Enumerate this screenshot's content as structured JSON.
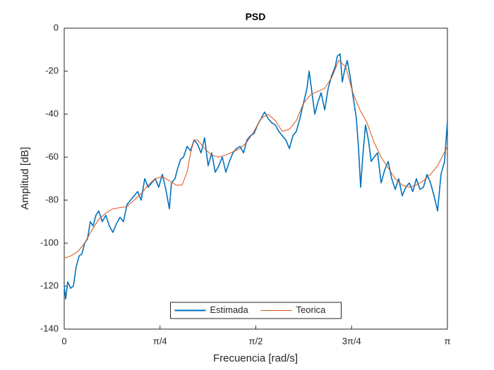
{
  "chart_data": {
    "type": "line",
    "title": "PSD",
    "x_label": "Frecuencia [rad/s]",
    "y_label": "Amplitud [dB]",
    "xlim": [
      0,
      3.1416
    ],
    "ylim": [
      -140,
      0
    ],
    "xticks": [
      {
        "value": 0,
        "label": "0"
      },
      {
        "value": 0.7854,
        "label": "π/4"
      },
      {
        "value": 1.5708,
        "label": "π/2"
      },
      {
        "value": 2.3562,
        "label": "3π/4"
      },
      {
        "value": 3.1416,
        "label": "π"
      }
    ],
    "yticks": [
      -140,
      -120,
      -100,
      -80,
      -60,
      -40,
      -20,
      0
    ],
    "grid": false,
    "legend": "south",
    "series": [
      {
        "name": "Estimada",
        "color": "#0072bd",
        "x": [
          0,
          0.012,
          0.029,
          0.052,
          0.075,
          0.098,
          0.122,
          0.145,
          0.168,
          0.191,
          0.214,
          0.237,
          0.26,
          0.283,
          0.312,
          0.341,
          0.37,
          0.399,
          0.428,
          0.457,
          0.486,
          0.515,
          0.544,
          0.573,
          0.602,
          0.631,
          0.66,
          0.688,
          0.717,
          0.746,
          0.775,
          0.804,
          0.833,
          0.862,
          0.879,
          0.908,
          0.931,
          0.955,
          0.978,
          1.007,
          1.036,
          1.065,
          1.093,
          1.122,
          1.151,
          1.18,
          1.209,
          1.238,
          1.267,
          1.296,
          1.325,
          1.354,
          1.383,
          1.412,
          1.441,
          1.47,
          1.498,
          1.527,
          1.556,
          1.585,
          1.614,
          1.643,
          1.672,
          1.701,
          1.73,
          1.759,
          1.788,
          1.817,
          1.846,
          1.875,
          1.903,
          1.932,
          1.961,
          1.99,
          2.008,
          2.031,
          2.054,
          2.077,
          2.106,
          2.135,
          2.164,
          2.193,
          2.222,
          2.239,
          2.262,
          2.28,
          2.297,
          2.32,
          2.343,
          2.366,
          2.395,
          2.413,
          2.43,
          2.447,
          2.47,
          2.494,
          2.517,
          2.54,
          2.569,
          2.598,
          2.627,
          2.656,
          2.685,
          2.713,
          2.742,
          2.771,
          2.8,
          2.829,
          2.858,
          2.887,
          2.916,
          2.945,
          2.974,
          3.003,
          3.032,
          3.061,
          3.089,
          3.118,
          3.142
        ],
        "values": [
          -120,
          -126,
          -118,
          -121,
          -120,
          -111,
          -106,
          -105,
          -100,
          -98,
          -90,
          -92,
          -87,
          -85,
          -90,
          -87,
          -92,
          -95,
          -91,
          -88,
          -90,
          -82,
          -80,
          -78,
          -76,
          -80,
          -70,
          -74,
          -72,
          -70,
          -74,
          -68,
          -75,
          -84,
          -72,
          -70,
          -65,
          -61,
          -60,
          -55,
          -57,
          -52,
          -54,
          -58,
          -51,
          -64,
          -58,
          -67,
          -64,
          -60,
          -67,
          -62,
          -58,
          -56,
          -55,
          -58,
          -52,
          -50,
          -49,
          -45,
          -42,
          -39,
          -42,
          -44,
          -45,
          -48,
          -50,
          -52,
          -56,
          -50,
          -48,
          -42,
          -35,
          -28,
          -20,
          -30,
          -40,
          -35,
          -30,
          -38,
          -28,
          -22,
          -18,
          -13,
          -12,
          -25,
          -20,
          -15,
          -22,
          -31,
          -42,
          -56,
          -74,
          -60,
          -45,
          -52,
          -62,
          -60,
          -58,
          -72,
          -66,
          -62,
          -70,
          -75,
          -70,
          -78,
          -74,
          -72,
          -76,
          -70,
          -75,
          -74,
          -68,
          -72,
          -78,
          -85,
          -68,
          -62,
          -43
        ]
      },
      {
        "name": "Teorica",
        "color": "#d95319",
        "x": [
          0,
          0.052,
          0.11,
          0.168,
          0.226,
          0.283,
          0.341,
          0.399,
          0.457,
          0.515,
          0.573,
          0.631,
          0.688,
          0.746,
          0.804,
          0.862,
          0.92,
          0.966,
          1.007,
          1.036,
          1.065,
          1.093,
          1.151,
          1.209,
          1.267,
          1.325,
          1.383,
          1.441,
          1.498,
          1.556,
          1.614,
          1.672,
          1.73,
          1.788,
          1.846,
          1.903,
          1.961,
          2.019,
          2.077,
          2.135,
          2.193,
          2.251,
          2.308,
          2.366,
          2.424,
          2.482,
          2.54,
          2.598,
          2.656,
          2.713,
          2.771,
          2.829,
          2.887,
          2.945,
          3.003,
          3.061,
          3.142
        ],
        "values": [
          -107,
          -106,
          -104,
          -100,
          -94,
          -89,
          -86,
          -84,
          -83.5,
          -83,
          -80,
          -77,
          -73,
          -70,
          -69,
          -71,
          -73,
          -73,
          -67,
          -58,
          -52,
          -52,
          -56,
          -59,
          -60,
          -59,
          -57.5,
          -56,
          -53,
          -48,
          -42,
          -40,
          -43,
          -48,
          -47,
          -43,
          -35,
          -31,
          -29.5,
          -28,
          -23,
          -15,
          -18,
          -30,
          -38,
          -44,
          -53,
          -60,
          -65,
          -70,
          -73,
          -74,
          -73,
          -71,
          -68,
          -64,
          -55
        ]
      }
    ]
  }
}
